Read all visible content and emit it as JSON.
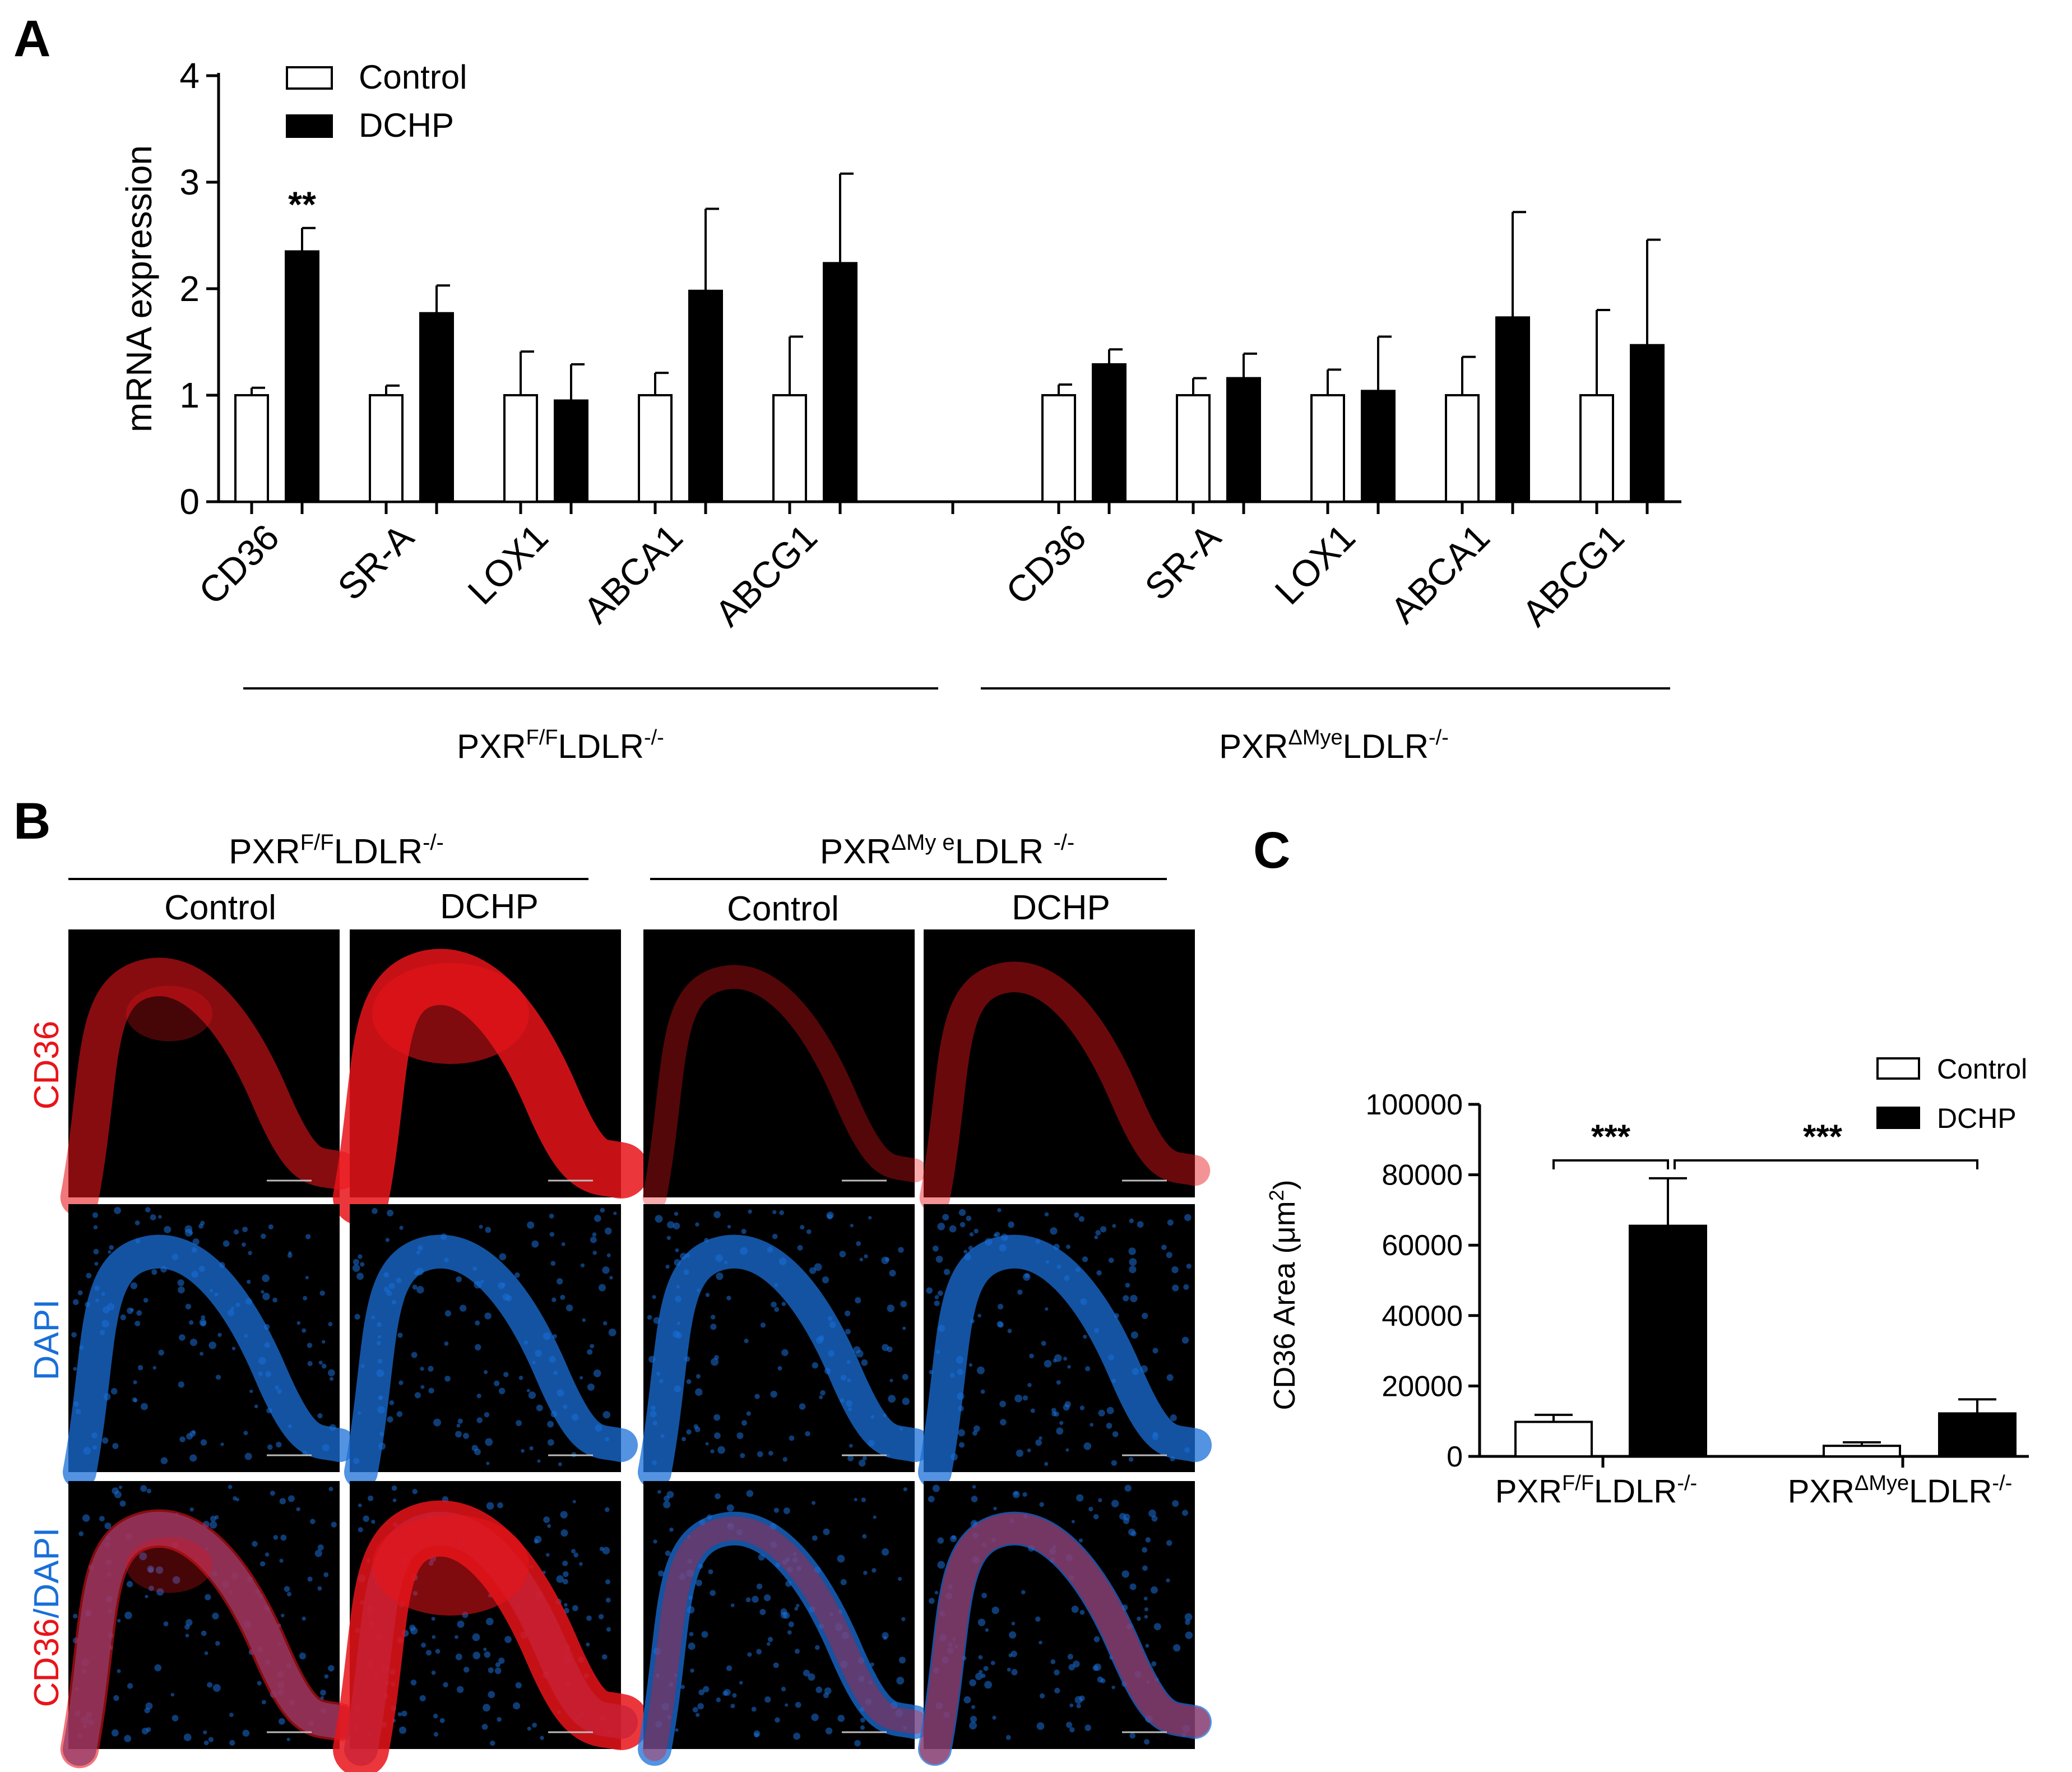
{
  "panels": {
    "A": {
      "letter": "A",
      "chart_data": {
        "type": "bar",
        "ylabel": "mRNA expression",
        "ylim": [
          0,
          4
        ],
        "yticks": [
          "0",
          "1",
          "2",
          "3",
          "4"
        ],
        "legend": {
          "placement": "top-left",
          "items": [
            "Control",
            "DCHP"
          ]
        },
        "groups": [
          {
            "label_main": "PXR",
            "label_sup": "F/F",
            "label_main2": "LDLR",
            "label_sup2": "-/-",
            "categories": [
              "CD36",
              "SR-A",
              "LOX1",
              "ABCA1",
              "ABCG1"
            ],
            "series": [
              {
                "name": "Control",
                "values": [
                  1.0,
                  1.0,
                  1.0,
                  1.0,
                  1.0
                ],
                "errors": [
                  0.07,
                  0.09,
                  0.41,
                  0.21,
                  0.55
                ]
              },
              {
                "name": "DCHP",
                "values": [
                  2.35,
                  1.77,
                  0.95,
                  1.98,
                  2.24
                ],
                "errors": [
                  0.22,
                  0.26,
                  0.34,
                  0.77,
                  0.84
                ]
              }
            ],
            "annotations": [
              {
                "category": "CD36",
                "text": "**"
              }
            ]
          },
          {
            "label_main": "PXR",
            "label_sup": "ΔMye",
            "label_main2": "LDLR",
            "label_sup2": "-/-",
            "categories": [
              "CD36",
              "SR-A",
              "LOX1",
              "ABCA1",
              "ABCG1"
            ],
            "series": [
              {
                "name": "Control",
                "values": [
                  1.0,
                  1.0,
                  1.0,
                  1.0,
                  1.0
                ],
                "errors": [
                  0.1,
                  0.16,
                  0.24,
                  0.36,
                  0.8
                ]
              },
              {
                "name": "DCHP",
                "values": [
                  1.29,
                  1.16,
                  1.04,
                  1.73,
                  1.47
                ],
                "errors": [
                  0.14,
                  0.23,
                  0.51,
                  0.99,
                  0.99
                ]
              }
            ]
          }
        ]
      }
    },
    "B": {
      "letter": "B",
      "groups": [
        {
          "label_main": "PXR",
          "label_sup": "F/F",
          "label_main2": "LDLR",
          "label_sup2": "-/-",
          "columns": [
            "Control",
            "DCHP"
          ]
        },
        {
          "label_main": "PXR",
          "label_sup": "ΔMy e",
          "label_main2": "LDLR ",
          "label_sup2": "-/-",
          "columns": [
            "Control",
            "DCHP"
          ]
        }
      ],
      "rows": [
        {
          "label_parts": [
            {
              "text": "CD36",
              "color": "#e8141a"
            }
          ]
        },
        {
          "label_parts": [
            {
              "text": "DAPI",
              "color": "#1a6fd8"
            }
          ]
        },
        {
          "label_parts": [
            {
              "text": "CD36",
              "color": "#e8141a"
            },
            {
              "text": "/",
              "color": "#1a6fd8"
            },
            {
              "text": "DAPI",
              "color": "#1a6fd8"
            }
          ]
        }
      ]
    },
    "C": {
      "letter": "C",
      "chart_data": {
        "type": "bar",
        "ylabel_main": "CD36 Area (μm",
        "ylabel_sup": "2",
        "ylabel_end": ")",
        "ylim": [
          0,
          100000
        ],
        "yticks": [
          "0",
          "20000",
          "40000",
          "60000",
          "80000",
          "100000"
        ],
        "legend": {
          "placement": "top-right",
          "items": [
            "Control",
            "DCHP"
          ]
        },
        "categories": [
          {
            "main": "PXR",
            "sup": "F/F",
            "main2": "LDLR",
            "sup2": "-/-"
          },
          {
            "main": "PXR",
            "sup": "ΔMye",
            "main2": "LDLR",
            "sup2": "-/-"
          }
        ],
        "series": [
          {
            "name": "Control",
            "values": [
              9800,
              3000
            ],
            "errors": [
              2000,
              1000
            ]
          },
          {
            "name": "DCHP",
            "values": [
              65500,
              12200
            ],
            "errors": [
              13500,
              4000
            ]
          }
        ],
        "significance": [
          {
            "text": "***",
            "between": "PXR F/F Control vs DCHP"
          },
          {
            "text": "***",
            "between": "PXR F/F DCHP vs PXR ΔMye DCHP"
          }
        ]
      }
    }
  },
  "colors": {
    "bar_dchp": "#000000",
    "bar_control": "#ffffff",
    "cd36_red": "#e8141a",
    "dapi_blue": "#1a6fd8"
  }
}
